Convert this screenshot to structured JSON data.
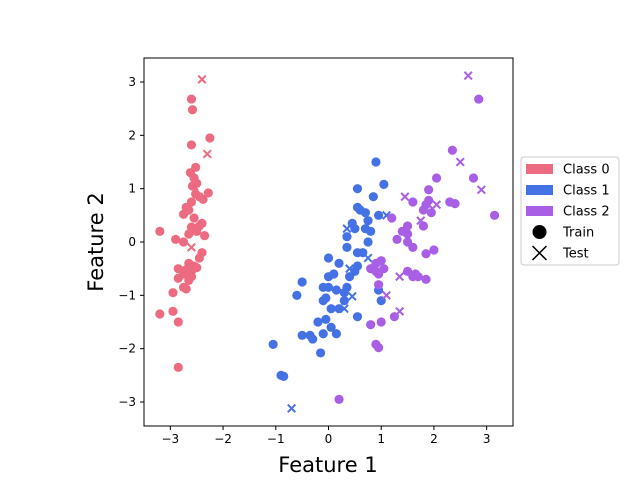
{
  "chart_data": {
    "type": "scatter",
    "title": "",
    "xlabel": "Feature 1",
    "ylabel": "Feature 2",
    "xlim": [
      -3.5,
      3.5
    ],
    "ylim": [
      -3.45,
      3.45
    ],
    "xticks": [
      -3,
      -2,
      -1,
      0,
      1,
      2,
      3
    ],
    "yticks": [
      -3,
      -2,
      -1,
      0,
      1,
      2,
      3
    ],
    "grid": false,
    "legend_position": "center right outside",
    "legend": {
      "classes": [
        {
          "label": "Class 0",
          "color": "#EC6B80"
        },
        {
          "label": "Class 1",
          "color": "#4472E4"
        },
        {
          "label": "Class 2",
          "color": "#A95EE6"
        }
      ],
      "markers": [
        {
          "label": "Train",
          "marker": "circle"
        },
        {
          "label": "Test",
          "marker": "x"
        }
      ]
    },
    "series": [
      {
        "name": "Class 0",
        "color": "#EC6B80",
        "train": [
          [
            -2.6,
            2.68
          ],
          [
            -2.58,
            2.48
          ],
          [
            -2.25,
            1.95
          ],
          [
            -2.6,
            1.82
          ],
          [
            -2.62,
            1.3
          ],
          [
            -2.52,
            1.4
          ],
          [
            -2.55,
            1.2
          ],
          [
            -2.5,
            1.1
          ],
          [
            -2.58,
            1.05
          ],
          [
            -2.52,
            0.9
          ],
          [
            -2.45,
            0.85
          ],
          [
            -2.38,
            0.8
          ],
          [
            -2.28,
            0.92
          ],
          [
            -2.6,
            0.75
          ],
          [
            -2.7,
            0.65
          ],
          [
            -2.65,
            0.6
          ],
          [
            -2.75,
            0.52
          ],
          [
            -2.55,
            0.45
          ],
          [
            -2.4,
            0.35
          ],
          [
            -2.45,
            0.3
          ],
          [
            -2.6,
            0.28
          ],
          [
            -2.5,
            0.2
          ],
          [
            -2.65,
            0.15
          ],
          [
            -2.35,
            0.12
          ],
          [
            -3.2,
            0.2
          ],
          [
            -2.9,
            0.05
          ],
          [
            -2.75,
            0.0
          ],
          [
            -2.4,
            -0.2
          ],
          [
            -2.65,
            -0.4
          ],
          [
            -2.55,
            -0.45
          ],
          [
            -2.85,
            -0.5
          ],
          [
            -2.7,
            -0.52
          ],
          [
            -2.5,
            -0.48
          ],
          [
            -2.6,
            -0.55
          ],
          [
            -2.75,
            -0.6
          ],
          [
            -2.6,
            -0.65
          ],
          [
            -2.85,
            -0.68
          ],
          [
            -2.65,
            -0.72
          ],
          [
            -2.75,
            -0.85
          ],
          [
            -2.95,
            -0.95
          ],
          [
            -2.7,
            -0.88
          ],
          [
            -3.2,
            -1.35
          ],
          [
            -2.95,
            -1.3
          ],
          [
            -2.85,
            -1.5
          ],
          [
            -2.85,
            -2.35
          ],
          [
            -2.45,
            -0.3
          ]
        ],
        "test": [
          [
            -2.4,
            3.05
          ],
          [
            -2.3,
            1.65
          ],
          [
            -2.55,
            1.15
          ],
          [
            -2.55,
            1.05
          ],
          [
            -2.6,
            -0.1
          ]
        ]
      },
      {
        "name": "Class 1",
        "color": "#4472E4",
        "train": [
          [
            0.9,
            1.5
          ],
          [
            1.05,
            1.08
          ],
          [
            0.55,
            1.0
          ],
          [
            0.55,
            0.65
          ],
          [
            0.6,
            0.6
          ],
          [
            0.85,
            0.85
          ],
          [
            0.95,
            0.5
          ],
          [
            0.7,
            0.55
          ],
          [
            0.75,
            0.4
          ],
          [
            0.45,
            0.35
          ],
          [
            0.5,
            0.25
          ],
          [
            0.35,
            0.1
          ],
          [
            0.7,
            0.25
          ],
          [
            0.8,
            0.2
          ],
          [
            0.75,
            0.0
          ],
          [
            0.65,
            -0.2
          ],
          [
            0.55,
            -0.2
          ],
          [
            0.35,
            -0.1
          ],
          [
            0.0,
            -0.3
          ],
          [
            0.2,
            -0.4
          ],
          [
            0.55,
            -0.45
          ],
          [
            0.5,
            -0.55
          ],
          [
            0.4,
            -0.65
          ],
          [
            0.1,
            -0.6
          ],
          [
            0.0,
            -0.65
          ],
          [
            -0.5,
            -0.75
          ],
          [
            0.0,
            -0.85
          ],
          [
            -0.1,
            -0.85
          ],
          [
            0.35,
            -0.85
          ],
          [
            0.15,
            -0.9
          ],
          [
            0.3,
            -0.95
          ],
          [
            0.95,
            -0.9
          ],
          [
            -0.6,
            -1.0
          ],
          [
            -0.05,
            -1.05
          ],
          [
            -0.1,
            -1.1
          ],
          [
            0.3,
            -1.1
          ],
          [
            1.0,
            -1.1
          ],
          [
            0.2,
            -1.25
          ],
          [
            0.05,
            -1.25
          ],
          [
            -0.05,
            -1.45
          ],
          [
            -0.2,
            -1.5
          ],
          [
            0.55,
            -1.4
          ],
          [
            0.05,
            -1.6
          ],
          [
            -0.5,
            -1.75
          ],
          [
            -0.35,
            -1.75
          ],
          [
            -0.3,
            -1.82
          ],
          [
            -0.1,
            -1.72
          ],
          [
            0.15,
            -1.72
          ],
          [
            -1.05,
            -1.92
          ],
          [
            -0.15,
            -2.08
          ],
          [
            -0.9,
            -2.5
          ],
          [
            -0.85,
            -2.52
          ]
        ],
        "test": [
          [
            0.35,
            0.25
          ],
          [
            1.1,
            0.5
          ],
          [
            0.75,
            -0.3
          ],
          [
            0.4,
            -0.5
          ],
          [
            0.45,
            -1.02
          ],
          [
            0.3,
            -1.25
          ],
          [
            -0.7,
            -3.12
          ]
        ]
      },
      {
        "name": "Class 2",
        "color": "#A95EE6",
        "train": [
          [
            2.85,
            2.68
          ],
          [
            2.35,
            1.72
          ],
          [
            2.05,
            1.2
          ],
          [
            2.75,
            1.2
          ],
          [
            1.9,
            0.98
          ],
          [
            2.3,
            0.75
          ],
          [
            2.4,
            0.72
          ],
          [
            1.6,
            0.75
          ],
          [
            1.9,
            0.78
          ],
          [
            1.85,
            0.7
          ],
          [
            1.8,
            0.6
          ],
          [
            1.95,
            0.55
          ],
          [
            3.15,
            0.5
          ],
          [
            1.2,
            0.45
          ],
          [
            1.5,
            0.3
          ],
          [
            1.8,
            0.3
          ],
          [
            1.4,
            0.2
          ],
          [
            1.5,
            0.15
          ],
          [
            1.3,
            0.05
          ],
          [
            1.5,
            0.0
          ],
          [
            1.6,
            -0.1
          ],
          [
            2.0,
            -0.15
          ],
          [
            1.85,
            -0.22
          ],
          [
            1.0,
            -0.35
          ],
          [
            0.9,
            -0.4
          ],
          [
            1.05,
            -0.5
          ],
          [
            0.8,
            -0.5
          ],
          [
            0.95,
            -0.6
          ],
          [
            0.9,
            -0.55
          ],
          [
            1.5,
            -0.55
          ],
          [
            1.65,
            -0.6
          ],
          [
            1.7,
            -0.65
          ],
          [
            1.6,
            -0.65
          ],
          [
            1.85,
            -0.7
          ],
          [
            0.95,
            -0.8
          ],
          [
            1.25,
            -1.4
          ],
          [
            1.0,
            -1.5
          ],
          [
            0.8,
            -1.55
          ],
          [
            0.9,
            -1.92
          ],
          [
            0.95,
            -1.98
          ],
          [
            0.2,
            -2.95
          ]
        ],
        "test": [
          [
            2.65,
            3.12
          ],
          [
            2.5,
            1.5
          ],
          [
            2.9,
            0.98
          ],
          [
            1.45,
            0.85
          ],
          [
            1.9,
            0.7
          ],
          [
            2.05,
            0.7
          ],
          [
            1.75,
            0.4
          ],
          [
            1.35,
            -0.65
          ],
          [
            1.1,
            -1.0
          ],
          [
            1.35,
            -1.3
          ]
        ]
      }
    ]
  }
}
